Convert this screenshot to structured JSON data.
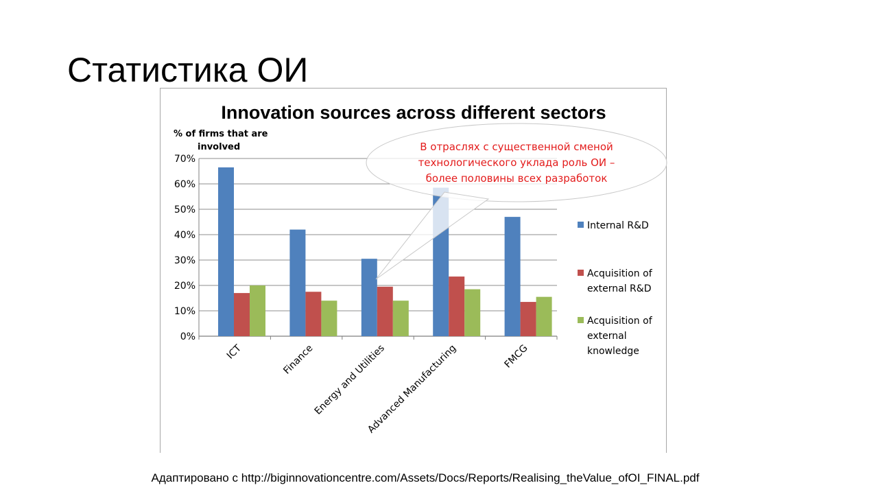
{
  "slide": {
    "title": "Статистика ОИ",
    "source_note": "Адаптировано с http://biginnovationcentre.com/Assets/Docs/Reports/Realising_theValue_ofOI_FINAL.pdf"
  },
  "callout": {
    "lines": [
      "В отраслях с существенной сменой",
      "технологического уклада роль ОИ –",
      "более половины всех разработок"
    ],
    "text_color": "#e31b1b"
  },
  "chart_data": {
    "type": "bar",
    "title": "Innovation sources across different sectors",
    "ylabel_lines": [
      "% of firms that are",
      "involved"
    ],
    "xlabel": "",
    "ylim": [
      0,
      70
    ],
    "ytick_step": 10,
    "ytick_suffix": "%",
    "grid": true,
    "legend_position": "right",
    "categories": [
      "ICT",
      "Finance",
      "Energy and Utilities",
      "Advanced Manufacturing",
      "FMCG"
    ],
    "series": [
      {
        "name": "Internal R&D",
        "legend_lines": [
          "Internal R&D"
        ],
        "color": "#4f81bd",
        "values": [
          66.5,
          42,
          30.5,
          58.5,
          47
        ]
      },
      {
        "name": "Acquisition of external R&D",
        "legend_lines": [
          "Acquisition of",
          "external R&D"
        ],
        "color": "#c0504d",
        "values": [
          17,
          17.5,
          19.5,
          23.5,
          13.5
        ]
      },
      {
        "name": "Acquisition of external knowledge",
        "legend_lines": [
          "Acquisition of",
          "external",
          "knowledge"
        ],
        "color": "#9bbb59",
        "values": [
          20,
          14,
          14,
          18.5,
          15.5
        ]
      }
    ]
  }
}
